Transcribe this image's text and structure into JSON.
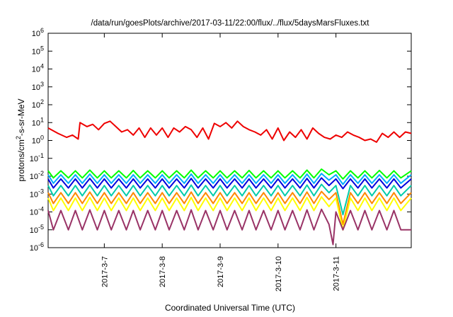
{
  "chart_data": {
    "type": "line",
    "title": "/data/run/goesPlots/archive/2017-03-11/22:00/flux/../flux/5daysMarsFluxes.txt",
    "xlabel": "Coordinated Universal Time (UTC)",
    "ylabel": "protons/cm²-s-sr-MeV",
    "ylabel_parts": {
      "pre": "protons/cm",
      "sup": "2",
      "post": "-s-sr-MeV"
    },
    "y_scale": "log",
    "ylim": [
      1e-06,
      1000000.0
    ],
    "y_ticks": [
      {
        "value": 1e-06,
        "base": "10",
        "exp": "-6"
      },
      {
        "value": 1e-05,
        "base": "10",
        "exp": "-5"
      },
      {
        "value": 0.0001,
        "base": "10",
        "exp": "-4"
      },
      {
        "value": 0.001,
        "base": "10",
        "exp": "-3"
      },
      {
        "value": 0.01,
        "base": "10",
        "exp": "-2"
      },
      {
        "value": 0.1,
        "base": "10",
        "exp": "-1"
      },
      {
        "value": 1.0,
        "base": "10",
        "exp": "0"
      },
      {
        "value": 10.0,
        "base": "10",
        "exp": "1"
      },
      {
        "value": 100.0,
        "base": "10",
        "exp": "2"
      },
      {
        "value": 1000.0,
        "base": "10",
        "exp": "3"
      },
      {
        "value": 10000.0,
        "base": "10",
        "exp": "4"
      },
      {
        "value": 100000.0,
        "base": "10",
        "exp": "5"
      },
      {
        "value": 1000000.0,
        "base": "10",
        "exp": "6"
      }
    ],
    "x_unit": "days",
    "xlim": [
      -0.97,
      5.3
    ],
    "x_ticks": [
      {
        "value": 0,
        "label": "2017-3-7"
      },
      {
        "value": 1,
        "label": "2017-3-8"
      },
      {
        "value": 2,
        "label": "2017-3-9"
      },
      {
        "value": 3,
        "label": "2017-3-10"
      },
      {
        "value": 4,
        "label": "2017-3-11"
      }
    ],
    "grid": false,
    "legend": "none",
    "series": [
      {
        "color": "#00ff00",
        "x": [
          -0.97,
          -0.88,
          -0.75,
          -0.62,
          -0.5,
          -0.38,
          -0.25,
          -0.12,
          0,
          0.12,
          0.25,
          0.38,
          0.5,
          0.62,
          0.75,
          0.88,
          1,
          1.12,
          1.25,
          1.38,
          1.5,
          1.62,
          1.75,
          1.88,
          2,
          2.12,
          2.25,
          2.38,
          2.5,
          2.62,
          2.75,
          2.88,
          3,
          3.12,
          3.25,
          3.38,
          3.5,
          3.62,
          3.75,
          3.88,
          4,
          4.12,
          4.25,
          4.38,
          4.5,
          4.62,
          4.75,
          4.88,
          5,
          5.12,
          5.3
        ],
        "y": [
          0.02,
          0.008,
          0.02,
          0.008,
          0.02,
          0.008,
          0.022,
          0.008,
          0.02,
          0.008,
          0.02,
          0.008,
          0.021,
          0.008,
          0.02,
          0.008,
          0.02,
          0.008,
          0.02,
          0.008,
          0.022,
          0.008,
          0.02,
          0.008,
          0.02,
          0.008,
          0.02,
          0.008,
          0.021,
          0.008,
          0.02,
          0.008,
          0.02,
          0.008,
          0.02,
          0.008,
          0.022,
          0.008,
          0.025,
          0.012,
          0.02,
          0.007,
          0.02,
          0.008,
          0.02,
          0.008,
          0.021,
          0.008,
          0.02,
          0.008,
          0.02
        ]
      },
      {
        "color": "#00aaff",
        "x": [
          -0.97,
          -0.88,
          -0.75,
          -0.62,
          -0.5,
          -0.38,
          -0.25,
          -0.12,
          0,
          0.12,
          0.25,
          0.38,
          0.5,
          0.62,
          0.75,
          0.88,
          1,
          1.12,
          1.25,
          1.38,
          1.5,
          1.62,
          1.75,
          1.88,
          2,
          2.12,
          2.25,
          2.38,
          2.5,
          2.62,
          2.75,
          2.88,
          3,
          3.12,
          3.25,
          3.38,
          3.5,
          3.62,
          3.75,
          3.88,
          4,
          4.12,
          4.25,
          4.38,
          4.5,
          4.62,
          4.75,
          4.88,
          5,
          5.12,
          5.3
        ],
        "y": [
          0.012,
          0.004,
          0.012,
          0.004,
          0.012,
          0.004,
          0.013,
          0.004,
          0.012,
          0.004,
          0.012,
          0.004,
          0.012,
          0.004,
          0.012,
          0.004,
          0.012,
          0.004,
          0.012,
          0.004,
          0.013,
          0.004,
          0.012,
          0.004,
          0.012,
          0.004,
          0.012,
          0.004,
          0.012,
          0.004,
          0.012,
          0.004,
          0.012,
          0.004,
          0.012,
          0.004,
          0.013,
          0.004,
          0.014,
          0.006,
          0.012,
          0.0035,
          0.012,
          0.004,
          0.012,
          0.004,
          0.012,
          0.004,
          0.012,
          0.004,
          0.012
        ]
      },
      {
        "color": "#0000dd",
        "x": [
          -0.97,
          -0.88,
          -0.75,
          -0.62,
          -0.5,
          -0.38,
          -0.25,
          -0.12,
          0,
          0.12,
          0.25,
          0.38,
          0.5,
          0.62,
          0.75,
          0.88,
          1,
          1.12,
          1.25,
          1.38,
          1.5,
          1.62,
          1.75,
          1.88,
          2,
          2.12,
          2.25,
          2.38,
          2.5,
          2.62,
          2.75,
          2.88,
          3,
          3.12,
          3.25,
          3.38,
          3.5,
          3.62,
          3.75,
          3.88,
          4,
          4.12,
          4.25,
          4.38,
          4.5,
          4.62,
          4.75,
          4.88,
          5,
          5.12,
          5.3
        ],
        "y": [
          0.007,
          0.0022,
          0.007,
          0.0022,
          0.007,
          0.0022,
          0.0075,
          0.0022,
          0.007,
          0.0022,
          0.007,
          0.0022,
          0.007,
          0.0022,
          0.007,
          0.0022,
          0.007,
          0.0022,
          0.007,
          0.0022,
          0.0075,
          0.0022,
          0.007,
          0.0022,
          0.007,
          0.0022,
          0.007,
          0.0022,
          0.007,
          0.0022,
          0.007,
          0.0022,
          0.007,
          0.0022,
          0.007,
          0.0022,
          0.0075,
          0.0022,
          0.008,
          0.003,
          0.007,
          0.002,
          0.007,
          0.0022,
          0.007,
          0.0022,
          0.007,
          0.0022,
          0.007,
          0.0022,
          0.007
        ]
      },
      {
        "color": "#00ccaa",
        "x": [
          -0.97,
          -0.88,
          -0.75,
          -0.62,
          -0.5,
          -0.38,
          -0.25,
          -0.12,
          0,
          0.12,
          0.25,
          0.38,
          0.5,
          0.62,
          0.75,
          0.88,
          1,
          1.12,
          1.25,
          1.38,
          1.5,
          1.62,
          1.75,
          1.88,
          2,
          2.12,
          2.25,
          2.38,
          2.5,
          2.62,
          2.75,
          2.88,
          3,
          3.12,
          3.25,
          3.38,
          3.5,
          3.62,
          3.75,
          3.88,
          4,
          4.12,
          4.25,
          4.38,
          4.5,
          4.62,
          4.75,
          4.88,
          5,
          5.12,
          5.3
        ],
        "y": [
          0.003,
          0.0008,
          0.003,
          0.0008,
          0.003,
          0.0008,
          0.0032,
          0.0008,
          0.003,
          0.0008,
          0.003,
          0.0008,
          0.003,
          0.0008,
          0.003,
          0.0008,
          0.003,
          0.0008,
          0.003,
          0.0008,
          0.0032,
          0.0008,
          0.003,
          0.0008,
          0.003,
          0.0008,
          0.003,
          0.0008,
          0.003,
          0.0008,
          0.003,
          0.0008,
          0.003,
          0.0008,
          0.003,
          0.0008,
          0.0032,
          0.0008,
          0.0035,
          0.0012,
          0.003,
          7e-05,
          0.003,
          0.0008,
          0.003,
          0.0008,
          0.003,
          0.0008,
          0.003,
          0.0008,
          0.003
        ]
      },
      {
        "color": "#ff8800",
        "x": [
          -0.97,
          -0.88,
          -0.75,
          -0.62,
          -0.5,
          -0.38,
          -0.25,
          -0.12,
          0,
          0.12,
          0.25,
          0.38,
          0.5,
          0.62,
          0.75,
          0.88,
          1,
          1.12,
          1.25,
          1.38,
          1.5,
          1.62,
          1.75,
          1.88,
          2,
          2.12,
          2.25,
          2.38,
          2.5,
          2.62,
          2.75,
          2.88,
          3,
          3.12,
          3.25,
          3.38,
          3.5,
          3.62,
          3.75,
          3.88,
          4,
          4.12,
          4.25,
          4.38,
          4.5,
          4.62,
          4.75,
          4.88,
          5,
          5.12,
          5.3
        ],
        "y": [
          0.0012,
          0.0003,
          0.0012,
          0.0003,
          0.0012,
          0.0003,
          0.0013,
          0.0003,
          0.0012,
          0.0003,
          0.0012,
          0.0003,
          0.0012,
          0.0003,
          0.0012,
          0.0003,
          0.0012,
          0.0003,
          0.0012,
          0.0003,
          0.0013,
          0.0003,
          0.0012,
          0.0003,
          0.0012,
          0.0003,
          0.0012,
          0.0003,
          0.0012,
          0.0003,
          0.0012,
          0.0003,
          0.0012,
          0.0003,
          0.0012,
          0.0003,
          0.0013,
          0.0003,
          0.0014,
          0.0005,
          0.0012,
          2e-05,
          0.0012,
          0.0003,
          0.0012,
          0.0003,
          0.0012,
          0.0003,
          0.0012,
          0.0003,
          0.0012
        ]
      },
      {
        "color": "#ffff00",
        "x": [
          -0.97,
          -0.88,
          -0.75,
          -0.62,
          -0.5,
          -0.38,
          -0.25,
          -0.12,
          0,
          0.12,
          0.25,
          0.38,
          0.5,
          0.62,
          0.75,
          0.88,
          1,
          1.12,
          1.25,
          1.38,
          1.5,
          1.62,
          1.75,
          1.88,
          2,
          2.12,
          2.25,
          2.38,
          2.5,
          2.62,
          2.75,
          2.88,
          3,
          3.12,
          3.25,
          3.38,
          3.5,
          3.62,
          3.75,
          3.88,
          4,
          4.12,
          4.25,
          4.38,
          4.5,
          4.62,
          4.75,
          4.88,
          5,
          5.12,
          5.3
        ],
        "y": [
          0.0006,
          0.00012,
          0.0006,
          0.00012,
          0.0006,
          0.00012,
          0.00065,
          0.00012,
          0.0006,
          0.00012,
          0.0006,
          0.00012,
          0.0006,
          0.00012,
          0.0006,
          0.00012,
          0.0006,
          0.00012,
          0.0006,
          0.00012,
          0.00065,
          0.00012,
          0.0006,
          0.00012,
          0.0006,
          0.00012,
          0.0006,
          0.00012,
          0.0006,
          0.00012,
          0.0006,
          0.00012,
          0.0006,
          0.00012,
          0.0006,
          0.00012,
          0.00065,
          0.00012,
          0.0007,
          0.0002,
          0.0006,
          1e-05,
          0.0006,
          0.00012,
          0.0006,
          0.00012,
          0.0006,
          0.00012,
          0.0006,
          0.00012,
          0.0006
        ]
      },
      {
        "color": "#993366",
        "x": [
          -0.97,
          -0.88,
          -0.75,
          -0.62,
          -0.5,
          -0.38,
          -0.25,
          -0.12,
          0,
          0.12,
          0.25,
          0.38,
          0.5,
          0.62,
          0.75,
          0.88,
          1,
          1.12,
          1.25,
          1.38,
          1.5,
          1.62,
          1.75,
          1.88,
          2,
          2.12,
          2.25,
          2.38,
          2.5,
          2.62,
          2.75,
          2.88,
          3,
          3.12,
          3.25,
          3.38,
          3.5,
          3.62,
          3.75,
          3.88,
          3.95,
          4,
          4.12,
          4.25,
          4.38,
          4.5,
          4.62,
          4.75,
          4.88,
          5,
          5.12,
          5.3
        ],
        "y": [
          0.00012,
          1e-05,
          0.00012,
          1e-05,
          0.00012,
          1e-05,
          0.00013,
          1e-05,
          0.00012,
          1e-05,
          0.00012,
          1e-05,
          0.00012,
          1e-05,
          0.00012,
          1e-05,
          0.00012,
          1e-05,
          0.00012,
          1e-05,
          0.00013,
          1e-05,
          0.00012,
          1e-05,
          0.00012,
          1e-05,
          0.00012,
          1e-05,
          0.00012,
          1e-05,
          0.00012,
          1e-05,
          0.00012,
          1e-05,
          0.00012,
          1e-05,
          0.00013,
          1e-05,
          0.00014,
          2e-05,
          1.5e-06,
          0.0001,
          1e-05,
          0.00012,
          1e-05,
          0.00012,
          1e-05,
          0.00012,
          1e-05,
          0.00012,
          1e-05,
          1e-05
        ]
      },
      {
        "color": "#ee0000",
        "x": [
          -0.97,
          -0.8,
          -0.65,
          -0.55,
          -0.45,
          -0.42,
          -0.3,
          -0.2,
          -0.1,
          0,
          0.1,
          0.2,
          0.3,
          0.4,
          0.5,
          0.6,
          0.7,
          0.8,
          0.9,
          1,
          1.1,
          1.2,
          1.3,
          1.4,
          1.5,
          1.6,
          1.7,
          1.8,
          1.9,
          2,
          2.1,
          2.2,
          2.3,
          2.4,
          2.5,
          2.6,
          2.7,
          2.8,
          2.9,
          3,
          3.1,
          3.2,
          3.3,
          3.4,
          3.5,
          3.6,
          3.7,
          3.8,
          3.9,
          4,
          4.1,
          4.2,
          4.3,
          4.4,
          4.5,
          4.6,
          4.7,
          4.8,
          4.9,
          5,
          5.1,
          5.2,
          5.3
        ],
        "y": [
          5,
          2.5,
          1.5,
          2,
          1.2,
          10,
          6,
          8,
          4,
          9,
          12,
          6,
          3,
          4,
          2,
          5,
          1.5,
          5,
          2,
          5,
          1.5,
          5,
          3,
          6,
          4,
          1.5,
          5,
          1.2,
          9,
          6,
          10,
          5,
          12,
          6,
          4,
          3,
          2,
          4,
          1.2,
          5,
          1,
          3,
          1.5,
          4,
          1.2,
          5,
          2.5,
          1.5,
          1.2,
          2,
          1.5,
          3,
          2,
          1.5,
          1,
          1.2,
          0.8,
          2.5,
          1.5,
          3,
          1.5,
          3,
          2.5
        ]
      }
    ]
  }
}
